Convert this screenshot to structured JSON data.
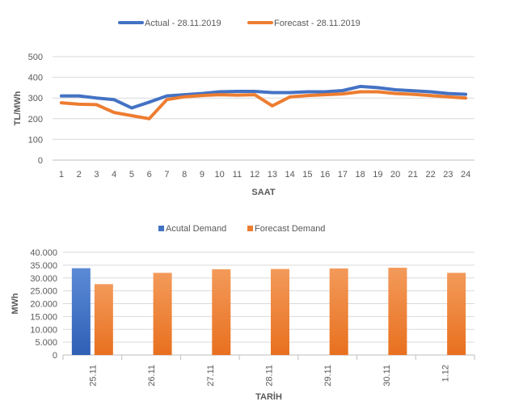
{
  "chart_data": [
    {
      "type": "line",
      "title": "",
      "xlabel": "SAAT",
      "ylabel": "TL/MWh",
      "ylim": [
        0,
        500
      ],
      "yticks": [
        0,
        100,
        200,
        300,
        400,
        500
      ],
      "grid": true,
      "legend_position": "top",
      "categories": [
        "1",
        "2",
        "3",
        "4",
        "5",
        "6",
        "7",
        "8",
        "9",
        "10",
        "11",
        "12",
        "13",
        "14",
        "15",
        "16",
        "17",
        "18",
        "19",
        "20",
        "21",
        "22",
        "23",
        "24"
      ],
      "series": [
        {
          "name": "Actual - 28.11.2019",
          "color": "#4472C4",
          "values": [
            310,
            310,
            300,
            292,
            252,
            280,
            310,
            316,
            322,
            330,
            332,
            332,
            326,
            326,
            330,
            330,
            336,
            356,
            350,
            340,
            335,
            330,
            322,
            318
          ]
        },
        {
          "name": "Forecast - 28.11.2019",
          "color": "#ED7D31",
          "values": [
            277,
            270,
            268,
            230,
            215,
            200,
            292,
            306,
            312,
            316,
            314,
            316,
            262,
            305,
            312,
            316,
            320,
            330,
            330,
            322,
            318,
            312,
            306,
            300
          ]
        }
      ]
    },
    {
      "type": "bar",
      "title": "",
      "xlabel": "TARİH",
      "ylabel": "MWh",
      "ylim": [
        0,
        40000
      ],
      "yticks": [
        0,
        5000,
        10000,
        15000,
        20000,
        25000,
        30000,
        35000,
        40000
      ],
      "ytick_labels": [
        "0",
        "5.000",
        "10.000",
        "15.000",
        "20.000",
        "25.000",
        "30.000",
        "35.000",
        "40.000"
      ],
      "grid": true,
      "legend_position": "top",
      "categories": [
        "25.11",
        "26.11",
        "27.11",
        "28.11",
        "29.11",
        "30.11",
        "1.12"
      ],
      "series": [
        {
          "name": "Acutal Demand",
          "color": "#4472C4",
          "values": [
            33800,
            null,
            null,
            null,
            null,
            null,
            null
          ]
        },
        {
          "name": "Forecast Demand",
          "color": "#ED7D31",
          "values": [
            27600,
            32000,
            33400,
            33500,
            33700,
            34000,
            32000
          ]
        }
      ]
    }
  ]
}
